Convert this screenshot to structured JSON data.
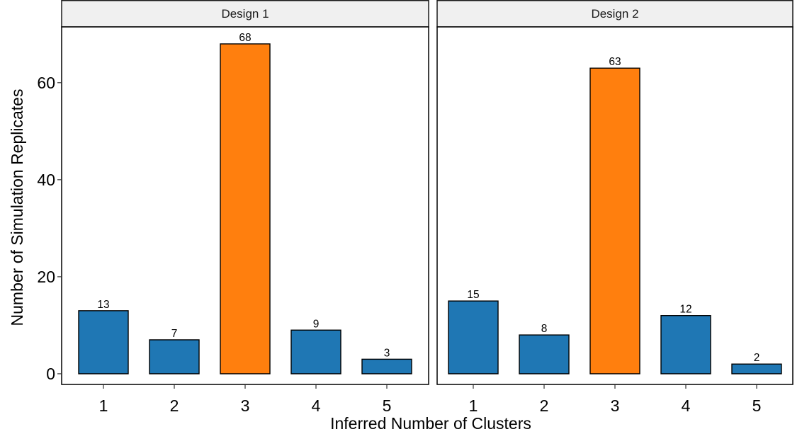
{
  "chart_data": {
    "type": "bar",
    "xlabel": "Inferred Number of Clusters",
    "ylabel": "Number of Simulation Replicates",
    "ylim": [
      -2.2,
      71.5
    ],
    "yticks": [
      0,
      20,
      40,
      60
    ],
    "grid": false,
    "colors": {
      "default": "#1f77b4",
      "highlight": "#ff7f0e"
    },
    "highlight_category": "3",
    "categories": [
      "1",
      "2",
      "3",
      "4",
      "5"
    ],
    "panels": [
      {
        "name": "Design 1",
        "values": [
          13,
          7,
          68,
          9,
          3
        ]
      },
      {
        "name": "Design 2",
        "values": [
          15,
          8,
          63,
          12,
          2
        ]
      }
    ]
  }
}
